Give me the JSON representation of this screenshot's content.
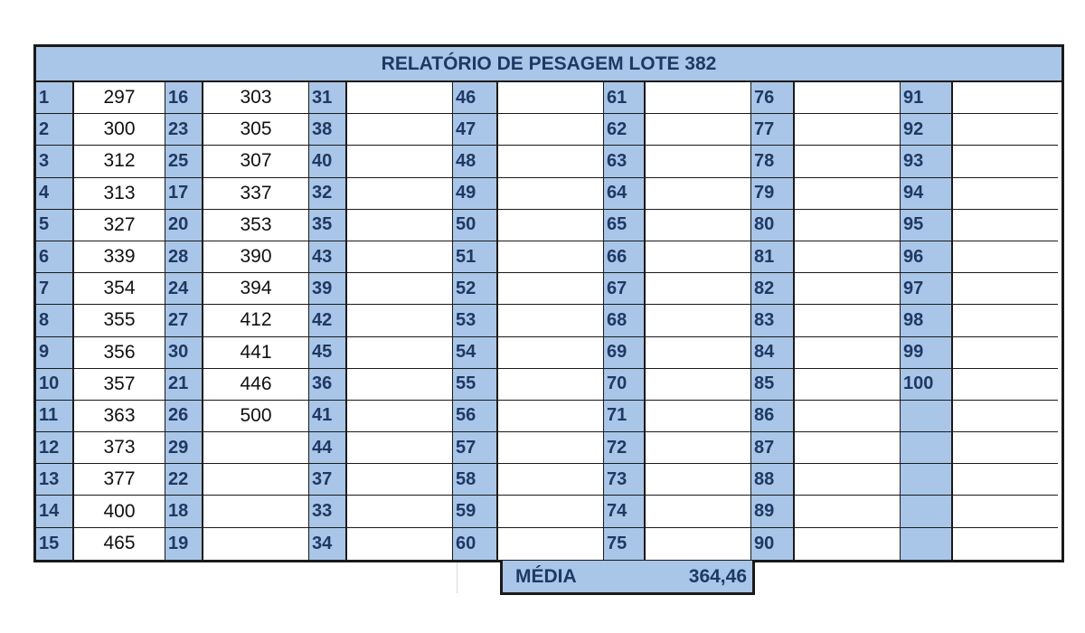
{
  "report": {
    "title": "RELATÓRIO DE PESAGEM LOTE 382",
    "media_label": "MÉDIA",
    "media_value": "364,46"
  },
  "rows": [
    [
      [
        "1",
        "297"
      ],
      [
        "16",
        "303"
      ],
      [
        "31",
        ""
      ],
      [
        "46",
        ""
      ],
      [
        "61",
        ""
      ],
      [
        "76",
        ""
      ],
      [
        "91",
        ""
      ]
    ],
    [
      [
        "2",
        "300"
      ],
      [
        "23",
        "305"
      ],
      [
        "38",
        ""
      ],
      [
        "47",
        ""
      ],
      [
        "62",
        ""
      ],
      [
        "77",
        ""
      ],
      [
        "92",
        ""
      ]
    ],
    [
      [
        "3",
        "312"
      ],
      [
        "25",
        "307"
      ],
      [
        "40",
        ""
      ],
      [
        "48",
        ""
      ],
      [
        "63",
        ""
      ],
      [
        "78",
        ""
      ],
      [
        "93",
        ""
      ]
    ],
    [
      [
        "4",
        "313"
      ],
      [
        "17",
        "337"
      ],
      [
        "32",
        ""
      ],
      [
        "49",
        ""
      ],
      [
        "64",
        ""
      ],
      [
        "79",
        ""
      ],
      [
        "94",
        ""
      ]
    ],
    [
      [
        "5",
        "327"
      ],
      [
        "20",
        "353"
      ],
      [
        "35",
        ""
      ],
      [
        "50",
        ""
      ],
      [
        "65",
        ""
      ],
      [
        "80",
        ""
      ],
      [
        "95",
        ""
      ]
    ],
    [
      [
        "6",
        "339"
      ],
      [
        "28",
        "390"
      ],
      [
        "43",
        ""
      ],
      [
        "51",
        ""
      ],
      [
        "66",
        ""
      ],
      [
        "81",
        ""
      ],
      [
        "96",
        ""
      ]
    ],
    [
      [
        "7",
        "354"
      ],
      [
        "24",
        "394"
      ],
      [
        "39",
        ""
      ],
      [
        "52",
        ""
      ],
      [
        "67",
        ""
      ],
      [
        "82",
        ""
      ],
      [
        "97",
        ""
      ]
    ],
    [
      [
        "8",
        "355"
      ],
      [
        "27",
        "412"
      ],
      [
        "42",
        ""
      ],
      [
        "53",
        ""
      ],
      [
        "68",
        ""
      ],
      [
        "83",
        ""
      ],
      [
        "98",
        ""
      ]
    ],
    [
      [
        "9",
        "356"
      ],
      [
        "30",
        "441"
      ],
      [
        "45",
        ""
      ],
      [
        "54",
        ""
      ],
      [
        "69",
        ""
      ],
      [
        "84",
        ""
      ],
      [
        "99",
        ""
      ]
    ],
    [
      [
        "10",
        "357"
      ],
      [
        "21",
        "446"
      ],
      [
        "36",
        ""
      ],
      [
        "55",
        ""
      ],
      [
        "70",
        ""
      ],
      [
        "85",
        ""
      ],
      [
        "100",
        ""
      ]
    ],
    [
      [
        "11",
        "363"
      ],
      [
        "26",
        "500"
      ],
      [
        "41",
        ""
      ],
      [
        "56",
        ""
      ],
      [
        "71",
        ""
      ],
      [
        "86",
        ""
      ],
      [
        "",
        ""
      ]
    ],
    [
      [
        "12",
        "373"
      ],
      [
        "29",
        ""
      ],
      [
        "44",
        ""
      ],
      [
        "57",
        ""
      ],
      [
        "72",
        ""
      ],
      [
        "87",
        ""
      ],
      [
        "",
        ""
      ]
    ],
    [
      [
        "13",
        "377"
      ],
      [
        "22",
        ""
      ],
      [
        "37",
        ""
      ],
      [
        "58",
        ""
      ],
      [
        "73",
        ""
      ],
      [
        "88",
        ""
      ],
      [
        "",
        ""
      ]
    ],
    [
      [
        "14",
        "400"
      ],
      [
        "18",
        ""
      ],
      [
        "33",
        ""
      ],
      [
        "59",
        ""
      ],
      [
        "74",
        ""
      ],
      [
        "89",
        ""
      ],
      [
        "",
        ""
      ]
    ],
    [
      [
        "15",
        "465"
      ],
      [
        "19",
        ""
      ],
      [
        "34",
        ""
      ],
      [
        "60",
        ""
      ],
      [
        "75",
        ""
      ],
      [
        "90",
        ""
      ],
      [
        "",
        ""
      ]
    ]
  ]
}
